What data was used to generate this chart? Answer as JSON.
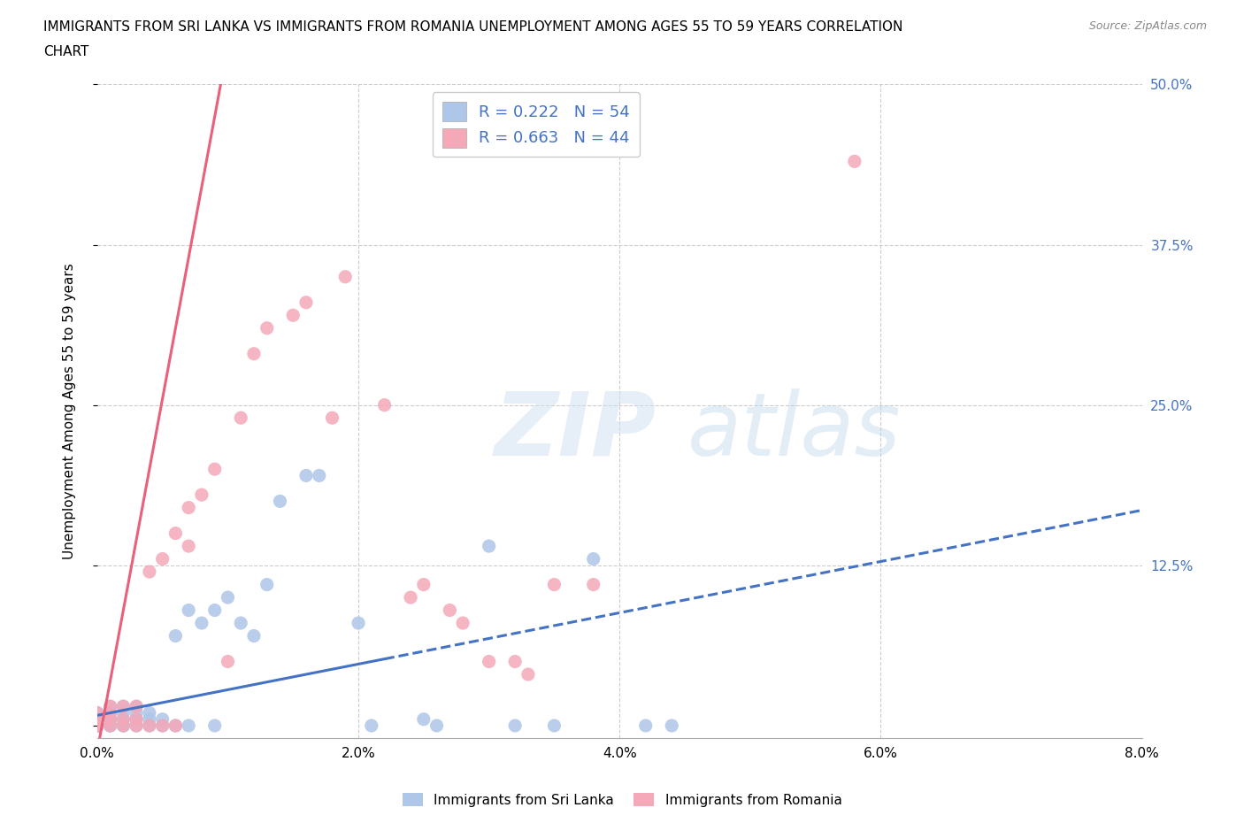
{
  "title_line1": "IMMIGRANTS FROM SRI LANKA VS IMMIGRANTS FROM ROMANIA UNEMPLOYMENT AMONG AGES 55 TO 59 YEARS CORRELATION",
  "title_line2": "CHART",
  "source": "Source: ZipAtlas.com",
  "ylabel": "Unemployment Among Ages 55 to 59 years",
  "xlim": [
    0.0,
    0.08
  ],
  "ylim": [
    -0.01,
    0.5
  ],
  "xticks": [
    0.0,
    0.02,
    0.04,
    0.06,
    0.08
  ],
  "yticks": [
    0.0,
    0.125,
    0.25,
    0.375,
    0.5
  ],
  "xticklabels": [
    "0.0%",
    "2.0%",
    "4.0%",
    "6.0%",
    "8.0%"
  ],
  "yticklabels": [
    "",
    "12.5%",
    "25.0%",
    "37.5%",
    "50.0%"
  ],
  "sri_lanka_color": "#aec6e8",
  "romania_color": "#f4a8b8",
  "sri_lanka_R": 0.222,
  "sri_lanka_N": 54,
  "romania_R": 0.663,
  "romania_N": 44,
  "sri_lanka_line_color": "#4472c4",
  "romania_line_color": "#e8607a",
  "tick_color": "#4472c4",
  "background_color": "#ffffff",
  "grid_color": "#cccccc",
  "sl_line_solid_end": 0.022,
  "sl_line_intercept": 0.008,
  "sl_line_slope": 2.0,
  "ro_line_intercept": -0.02,
  "ro_line_slope": 55.0,
  "sri_lanka_x": [
    0.0,
    0.0,
    0.0,
    0.0,
    0.0,
    0.0,
    0.0,
    0.0,
    0.0,
    0.0,
    0.001,
    0.001,
    0.001,
    0.001,
    0.001,
    0.001,
    0.002,
    0.002,
    0.002,
    0.002,
    0.002,
    0.003,
    0.003,
    0.003,
    0.003,
    0.004,
    0.004,
    0.004,
    0.005,
    0.005,
    0.006,
    0.006,
    0.007,
    0.007,
    0.008,
    0.009,
    0.009,
    0.01,
    0.011,
    0.012,
    0.013,
    0.014,
    0.016,
    0.017,
    0.02,
    0.021,
    0.025,
    0.026,
    0.03,
    0.032,
    0.035,
    0.038,
    0.042,
    0.044
  ],
  "sri_lanka_y": [
    0.0,
    0.0,
    0.0,
    0.0,
    0.0,
    0.0,
    0.0,
    0.005,
    0.005,
    0.01,
    0.0,
    0.0,
    0.005,
    0.005,
    0.01,
    0.015,
    0.0,
    0.0,
    0.005,
    0.01,
    0.015,
    0.0,
    0.005,
    0.01,
    0.015,
    0.0,
    0.005,
    0.01,
    0.0,
    0.005,
    0.0,
    0.07,
    0.0,
    0.09,
    0.08,
    0.0,
    0.09,
    0.1,
    0.08,
    0.07,
    0.11,
    0.175,
    0.195,
    0.195,
    0.08,
    0.0,
    0.005,
    0.0,
    0.14,
    0.0,
    0.0,
    0.13,
    0.0,
    0.0
  ],
  "romania_x": [
    0.0,
    0.0,
    0.0,
    0.0,
    0.0,
    0.001,
    0.001,
    0.001,
    0.001,
    0.002,
    0.002,
    0.002,
    0.003,
    0.003,
    0.003,
    0.004,
    0.004,
    0.005,
    0.005,
    0.006,
    0.006,
    0.007,
    0.007,
    0.008,
    0.009,
    0.01,
    0.011,
    0.012,
    0.013,
    0.015,
    0.016,
    0.018,
    0.019,
    0.022,
    0.024,
    0.025,
    0.027,
    0.028,
    0.03,
    0.032,
    0.033,
    0.035,
    0.038,
    0.058
  ],
  "romania_y": [
    0.0,
    0.0,
    0.0,
    0.005,
    0.01,
    0.0,
    0.005,
    0.01,
    0.015,
    0.0,
    0.005,
    0.015,
    0.0,
    0.005,
    0.015,
    0.0,
    0.12,
    0.0,
    0.13,
    0.0,
    0.15,
    0.14,
    0.17,
    0.18,
    0.2,
    0.05,
    0.24,
    0.29,
    0.31,
    0.32,
    0.33,
    0.24,
    0.35,
    0.25,
    0.1,
    0.11,
    0.09,
    0.08,
    0.05,
    0.05,
    0.04,
    0.11,
    0.11,
    0.44
  ]
}
